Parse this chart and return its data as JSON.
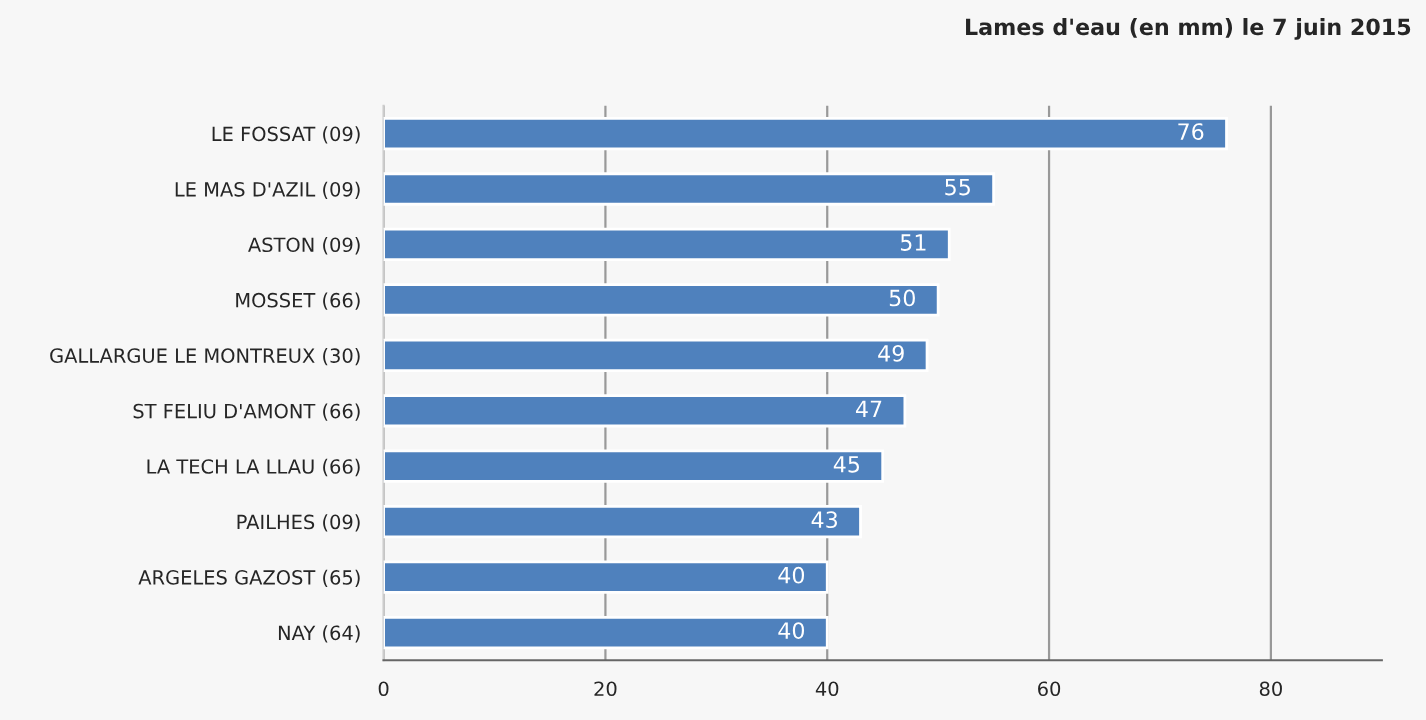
{
  "chart_data": {
    "type": "bar",
    "orientation": "horizontal",
    "title": "Lames d'eau (en mm) le 7 juin 2015",
    "categories": [
      "LE FOSSAT (09)",
      "LE MAS D'AZIL (09)",
      "ASTON (09)",
      "MOSSET (66)",
      "GALLARGUE LE MONTREUX (30)",
      "ST FELIU D'AMONT (66)",
      "LA TECH LA LLAU (66)",
      "PAILHES (09)",
      "ARGELES GAZOST (65)",
      "NAY (64)"
    ],
    "values": [
      76,
      55,
      51,
      50,
      49,
      47,
      45,
      43,
      40,
      40
    ],
    "color": "#4f81bd",
    "xlim": [
      0,
      90
    ],
    "xticks": [
      0,
      20,
      40,
      60,
      80
    ],
    "grid": "x",
    "data_labels": true
  }
}
